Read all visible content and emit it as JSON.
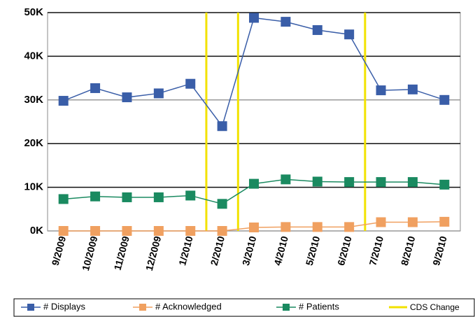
{
  "chart_data": {
    "type": "line",
    "categories": [
      "9/2009",
      "10/2009",
      "11/2009",
      "12/2009",
      "1/2010",
      "2/2010",
      "3/2010",
      "4/2010",
      "5/2010",
      "6/2010",
      "7/2010",
      "8/2010",
      "9/2010"
    ],
    "series": [
      {
        "name": "# Displays",
        "color": "#3a5ea8",
        "values": [
          29800,
          32700,
          30600,
          31500,
          33700,
          24000,
          48800,
          47900,
          46000,
          45000,
          32200,
          32400,
          30000
        ]
      },
      {
        "name": "# Acknowledged",
        "color": "#f0a060",
        "values": [
          0,
          0,
          0,
          0,
          0,
          0,
          800,
          900,
          900,
          900,
          2000,
          2000,
          2100
        ]
      },
      {
        "name": "# Patients",
        "color": "#1a8a60",
        "values": [
          7300,
          7900,
          7700,
          7700,
          8100,
          6200,
          10800,
          11800,
          11300,
          11200,
          11200,
          11200,
          10600
        ]
      }
    ],
    "cds_change": {
      "name": "CDS Change",
      "color": "#f2e200",
      "after": [
        "1/2010",
        "2/2010",
        "6/2010"
      ]
    },
    "ylim": [
      0,
      50000
    ],
    "yticks": [
      {
        "value": 0,
        "label": "0K"
      },
      {
        "value": 10000,
        "label": "10K"
      },
      {
        "value": 20000,
        "label": "20K"
      },
      {
        "value": 30000,
        "label": "30K"
      },
      {
        "value": 40000,
        "label": "40K"
      },
      {
        "value": 50000,
        "label": "50K"
      }
    ],
    "grid": true
  }
}
